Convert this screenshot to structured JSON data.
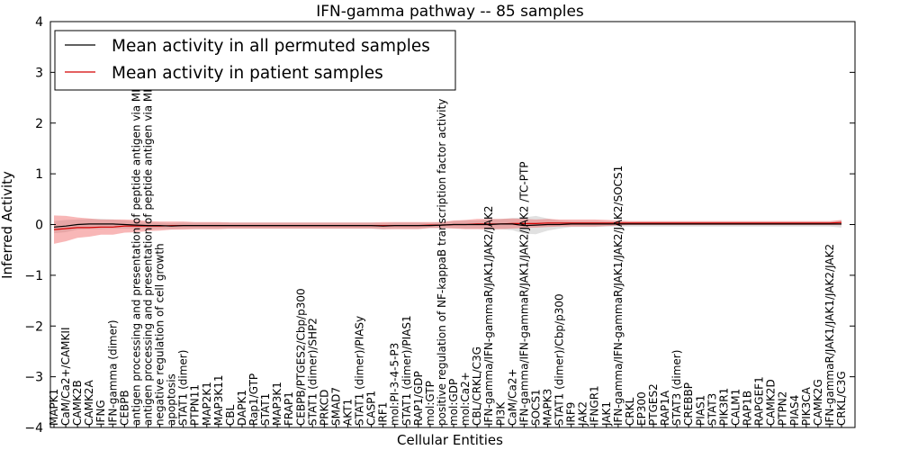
{
  "chart_data": {
    "type": "line",
    "title": "IFN-gamma pathway -- 85 samples",
    "xlabel": "Cellular Entities",
    "ylabel": "Inferred Activity",
    "ylim": [
      -4,
      4
    ],
    "yticks": [
      -4,
      -3,
      -2,
      -1,
      0,
      1,
      2,
      3,
      4
    ],
    "legend_position": "upper-left",
    "categories": [
      "MAPK1",
      "CaM/Ca2+/CAMKII",
      "CAMK2B",
      "CAMK2A",
      "IFNG",
      "IFN-gamma (dimer)",
      "CEBPB",
      "antigen processing and presentation of peptide antigen via MHC class I",
      "antigen processing and presentation of peptide antigen via MHC class II",
      "negative regulation of cell growth",
      "apoptosis",
      "STAT1 (dimer)",
      "PTPN11",
      "MAP2K1",
      "MAP3K11",
      "CBL",
      "DAPK1",
      "Rap1/GTP",
      "STAT1",
      "MAP3K1",
      "FRAP1",
      "CEBPB/PTGES2/Cbp/p300",
      "STAT1 (dimer)/SHP2",
      "PRKCD",
      "SMAD7",
      "AKT1",
      "STAT1 (dimer)/PIASy",
      "CASP1",
      "IRF1",
      "mol:PI-3-4-5-P3",
      "STAT1 (dimer)/PIAS1",
      "RAP1/GDP",
      "mol:GTP",
      "positive regulation of NF-kappaB transcription factor activity",
      "mol:GDP",
      "mol:Ca2+",
      "CBL/CRKL/C3G",
      "IFN-gamma/IFN-gammaR/JAK1/JAK2/JAK2",
      "PI3K",
      "CaM/Ca2+",
      "IFN-gamma/IFN-gammaR/JAK1/JAK2/JAK2 /TC-PTP",
      "SOCS1",
      "MAPK3",
      "STAT1 (dimer)/Cbp/p300",
      "IRF9",
      "JAK2",
      "IFNGR1",
      "JAK1",
      "IFN-gamma/IFN-gammaR/JAK1/JAK2/JAK2/SOCS1",
      "CRKL",
      "EP300",
      "PTGES2",
      "RAP1A",
      "STAT3 (dimer)",
      "CREBBP",
      "PIAS1",
      "STAT3",
      "PIK3R1",
      "CALM1",
      "RAP1B",
      "RAPGEF1",
      "CAMK2D",
      "PTPN2",
      "PIAS4",
      "PIK3CA",
      "CAMK2G",
      "IFN-gammaR/JAK1/JAK1/JAK2/JAK2",
      "CRKL/C3G"
    ],
    "series": [
      {
        "name": "Mean activity in all permuted samples",
        "color": "#000000",
        "values": [
          -0.05,
          -0.03,
          0.0,
          0.01,
          0.01,
          0.01,
          0.0,
          -0.01,
          -0.02,
          -0.02,
          -0.03,
          -0.02,
          -0.02,
          -0.02,
          -0.02,
          -0.02,
          -0.02,
          -0.02,
          -0.02,
          -0.02,
          -0.02,
          -0.02,
          -0.02,
          -0.02,
          -0.02,
          -0.02,
          -0.02,
          -0.02,
          -0.03,
          -0.02,
          -0.02,
          -0.02,
          -0.02,
          -0.01,
          0.0,
          0.0,
          0.0,
          0.0,
          0.01,
          0.01,
          -0.02,
          -0.01,
          0.0,
          0.0,
          0.01,
          0.01,
          0.01,
          0.01,
          0.01,
          0.01,
          0.01,
          0.01,
          0.01,
          0.01,
          0.01,
          0.01,
          0.01,
          0.01,
          0.01,
          0.01,
          0.01,
          0.01,
          0.01,
          0.01,
          0.01,
          0.01,
          0.01,
          0.01
        ],
        "band": [
          0.12,
          0.12,
          0.1,
          0.1,
          0.1,
          0.09,
          0.08,
          0.07,
          0.07,
          0.06,
          0.06,
          0.06,
          0.06,
          0.06,
          0.06,
          0.06,
          0.06,
          0.06,
          0.06,
          0.06,
          0.06,
          0.06,
          0.06,
          0.06,
          0.06,
          0.06,
          0.06,
          0.06,
          0.06,
          0.06,
          0.06,
          0.06,
          0.05,
          0.06,
          0.07,
          0.08,
          0.08,
          0.1,
          0.1,
          0.12,
          0.16,
          0.18,
          0.12,
          0.08,
          0.06,
          0.06,
          0.06,
          0.05,
          0.05,
          0.05,
          0.05,
          0.05,
          0.05,
          0.05,
          0.05,
          0.05,
          0.05,
          0.05,
          0.05,
          0.05,
          0.05,
          0.05,
          0.05,
          0.05,
          0.05,
          0.05,
          0.05,
          0.07
        ]
      },
      {
        "name": "Mean activity in patient samples",
        "color": "#d40000",
        "values": [
          -0.1,
          -0.08,
          -0.06,
          -0.06,
          -0.05,
          -0.05,
          -0.03,
          -0.03,
          -0.03,
          -0.03,
          -0.02,
          -0.02,
          -0.02,
          -0.02,
          -0.02,
          -0.02,
          -0.02,
          -0.02,
          -0.02,
          -0.02,
          -0.02,
          -0.02,
          -0.02,
          -0.02,
          -0.02,
          -0.02,
          -0.02,
          -0.02,
          -0.02,
          -0.02,
          -0.02,
          -0.02,
          -0.01,
          -0.01,
          0.0,
          0.0,
          0.01,
          0.01,
          0.01,
          0.02,
          0.02,
          0.02,
          0.03,
          0.03,
          0.03,
          0.03,
          0.03,
          0.03,
          0.03,
          0.03,
          0.03,
          0.03,
          0.03,
          0.03,
          0.03,
          0.03,
          0.03,
          0.03,
          0.03,
          0.03,
          0.03,
          0.03,
          0.03,
          0.03,
          0.03,
          0.03,
          0.03,
          0.04
        ],
        "band": [
          0.28,
          0.25,
          0.2,
          0.18,
          0.15,
          0.15,
          0.13,
          0.12,
          0.1,
          0.09,
          0.08,
          0.08,
          0.07,
          0.07,
          0.07,
          0.06,
          0.06,
          0.06,
          0.06,
          0.06,
          0.06,
          0.06,
          0.06,
          0.06,
          0.06,
          0.06,
          0.06,
          0.06,
          0.07,
          0.07,
          0.07,
          0.07,
          0.06,
          0.06,
          0.08,
          0.09,
          0.1,
          0.1,
          0.1,
          0.1,
          0.09,
          0.08,
          0.08,
          0.07,
          0.07,
          0.07,
          0.07,
          0.06,
          0.05,
          0.04,
          0.04,
          0.04,
          0.04,
          0.04,
          0.04,
          0.04,
          0.04,
          0.04,
          0.04,
          0.04,
          0.04,
          0.04,
          0.04,
          0.04,
          0.04,
          0.04,
          0.04,
          0.05
        ]
      }
    ]
  }
}
